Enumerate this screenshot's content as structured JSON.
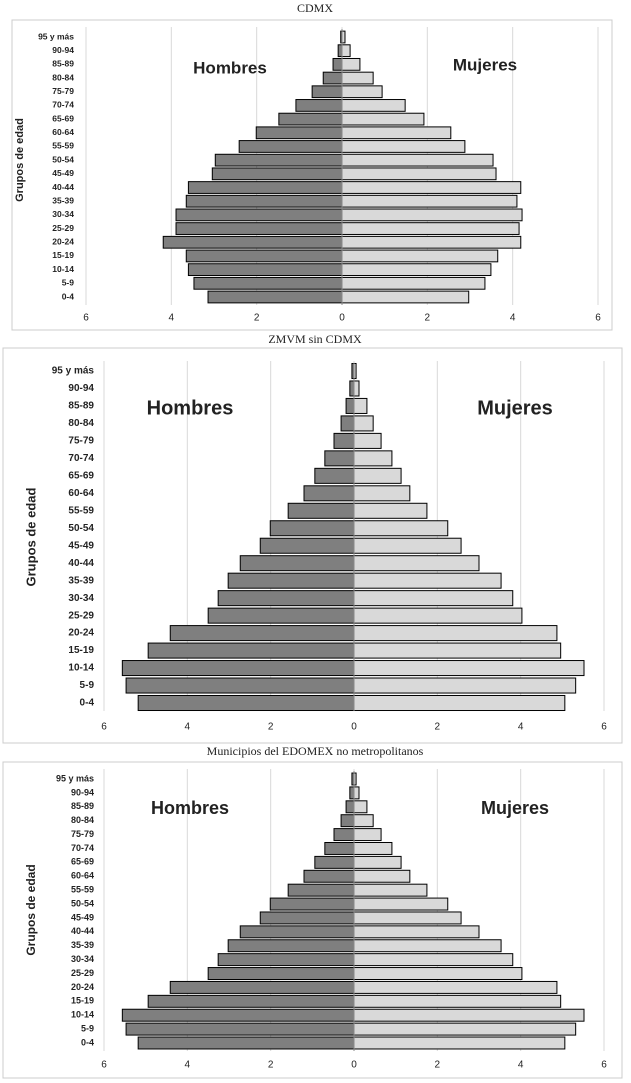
{
  "chart_data": [
    {
      "type": "pyramid",
      "title": "CDMX",
      "y_label": "Grupos de edad",
      "categories": [
        "95 y más",
        "90-94",
        "85-89",
        "80-84",
        "75-79",
        "70-74",
        "65-69",
        "60-64",
        "55-59",
        "50-54",
        "45-49",
        "40-44",
        "35-39",
        "30-34",
        "25-29",
        "20-24",
        "15-19",
        "10-14",
        "5-9",
        "0-4"
      ],
      "series": [
        {
          "name": "Hombres",
          "color": "#7f7f7f",
          "values": [
            -0.03,
            -0.09,
            -0.21,
            -0.44,
            -0.7,
            -1.08,
            -1.48,
            -2.01,
            -2.41,
            -2.97,
            -3.04,
            -3.6,
            -3.65,
            -3.89,
            -3.89,
            -4.19,
            -3.65,
            -3.6,
            -3.47,
            -3.14
          ]
        },
        {
          "name": "Mujeres",
          "color": "#d9d9d9",
          "values": [
            0.07,
            0.19,
            0.42,
            0.73,
            0.94,
            1.48,
            1.92,
            2.55,
            2.88,
            3.54,
            3.61,
            4.19,
            4.1,
            4.22,
            4.15,
            4.19,
            3.65,
            3.49,
            3.35,
            2.97
          ]
        }
      ],
      "xlim": [
        -6,
        6
      ],
      "xticks": [
        {
          "value": -6,
          "label": "6"
        },
        {
          "value": -4,
          "label": "4"
        },
        {
          "value": -2,
          "label": "2"
        },
        0,
        2,
        4,
        6
      ],
      "grid": true
    },
    {
      "type": "pyramid",
      "title": "ZMVM sin CDMX",
      "y_label": "Grupos de edad",
      "categories": [
        "95 y más",
        "90-94",
        "85-89",
        "80-84",
        "75-79",
        "70-74",
        "65-69",
        "60-64",
        "55-59",
        "50-54",
        "45-49",
        "40-44",
        "35-39",
        "30-34",
        "25-29",
        "20-24",
        "15-19",
        "10-14",
        "5-9",
        "0-4"
      ],
      "series": [
        {
          "name": "Hombres",
          "color": "#7f7f7f",
          "values": [
            -0.05,
            -0.1,
            -0.19,
            -0.31,
            -0.48,
            -0.7,
            -0.94,
            -1.2,
            -1.58,
            -2.01,
            -2.25,
            -2.73,
            -3.02,
            -3.26,
            -3.5,
            -4.41,
            -4.94,
            -5.56,
            -5.47,
            -5.18
          ]
        },
        {
          "name": "Mujeres",
          "color": "#d9d9d9",
          "values": [
            0.05,
            0.12,
            0.31,
            0.46,
            0.65,
            0.91,
            1.13,
            1.34,
            1.75,
            2.25,
            2.57,
            3.0,
            3.53,
            3.81,
            4.03,
            4.87,
            4.96,
            5.52,
            5.32,
            5.06
          ]
        }
      ],
      "xlim": [
        -6,
        6
      ],
      "xticks": [
        {
          "value": -6,
          "label": "6"
        },
        {
          "value": -4,
          "label": "4"
        },
        {
          "value": -2,
          "label": "2"
        },
        0,
        2,
        4,
        6
      ],
      "grid": true
    },
    {
      "type": "pyramid",
      "title": "Municipios del EDOMEX no metropolitanos",
      "y_label": "Grupos de edad",
      "categories": [
        "95 y más",
        "90-94",
        "85-89",
        "80-84",
        "75-79",
        "70-74",
        "65-69",
        "60-64",
        "55-59",
        "50-54",
        "45-49",
        "40-44",
        "35-39",
        "30-34",
        "25-29",
        "20-24",
        "15-19",
        "10-14",
        "5-9",
        "0-4"
      ],
      "series": [
        {
          "name": "Hombres",
          "color": "#7f7f7f",
          "values": [
            -0.05,
            -0.1,
            -0.19,
            -0.31,
            -0.48,
            -0.7,
            -0.94,
            -1.2,
            -1.58,
            -2.01,
            -2.25,
            -2.73,
            -3.02,
            -3.26,
            -3.5,
            -4.41,
            -4.94,
            -5.56,
            -5.47,
            -5.18
          ]
        },
        {
          "name": "Mujeres",
          "color": "#d9d9d9",
          "values": [
            0.05,
            0.12,
            0.31,
            0.46,
            0.65,
            0.91,
            1.13,
            1.34,
            1.75,
            2.25,
            2.57,
            3.0,
            3.53,
            3.81,
            4.03,
            4.87,
            4.96,
            5.52,
            5.32,
            5.06
          ]
        }
      ],
      "xlim": [
        -6,
        6
      ],
      "xticks": [
        {
          "value": -6,
          "label": "6"
        },
        {
          "value": -4,
          "label": "4"
        },
        {
          "value": -2,
          "label": "2"
        },
        0,
        2,
        4,
        6
      ],
      "grid": true
    }
  ]
}
